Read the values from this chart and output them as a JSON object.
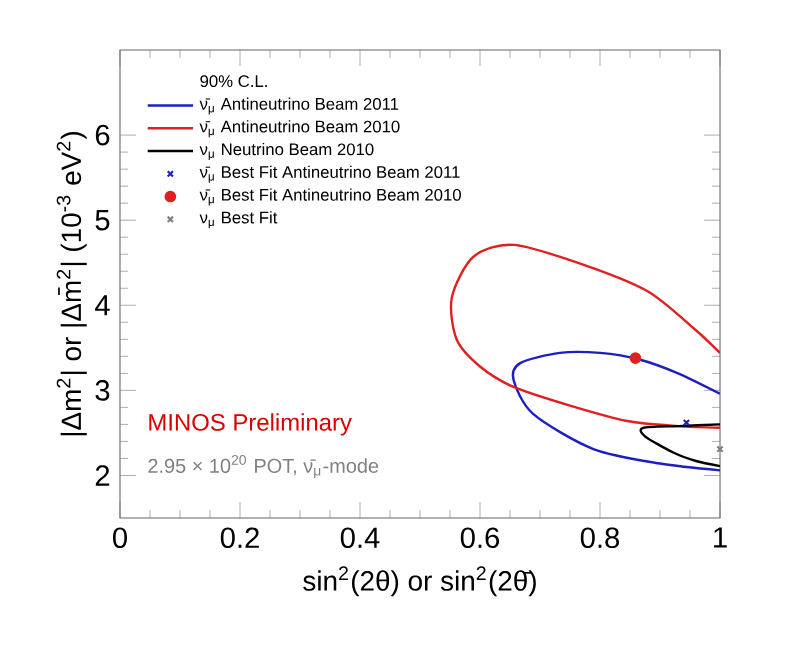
{
  "chart_data": {
    "type": "line",
    "xlabel": "sin$^{2}$(2θ) or sin$^{2}$(2θ̄)",
    "ylabel": "|Δm$^{2}$| or |Δm̄$^{2}$| (10$^{-3}$ eV$^{2}$)",
    "legend_title": "90% C.L.",
    "annotations": [
      "MINOS Preliminary",
      "2.95 × 10$^{20}$ POT, ν̄$_{μ}$-mode"
    ],
    "xlim": [
      0,
      1
    ],
    "ylim": [
      1.5,
      7
    ],
    "xticks": [
      0,
      0.2,
      0.4,
      0.6,
      0.8,
      1
    ],
    "yticks": [
      2,
      3,
      4,
      5,
      6
    ],
    "legend": "top left",
    "series": [
      {
        "name": "ν̄$_{μ}$ Antineutrino Beam 2011",
        "color": "#1f1fbf",
        "x": [
          1,
          0.93,
          0.867,
          0.8,
          0.733,
          0.667,
          0.656,
          0.689,
          0.789,
          0.9,
          1
        ],
        "values": [
          2.96,
          3.2,
          3.36,
          3.44,
          3.44,
          3.32,
          3.12,
          2.72,
          2.31,
          2.14,
          2.06
        ]
      },
      {
        "name": "ν̄$_{μ}$ Antineutrino Beam 2010",
        "color": "#e02020",
        "x": [
          1,
          0.956,
          0.878,
          0.767,
          0.656,
          0.589,
          0.553,
          0.561,
          0.6,
          0.656,
          0.75,
          0.845,
          0.93,
          1
        ],
        "values": [
          3.44,
          3.73,
          4.17,
          4.49,
          4.71,
          4.57,
          4.09,
          3.6,
          3.28,
          3.04,
          2.82,
          2.64,
          2.58,
          2.56
        ]
      },
      {
        "name": "ν$_{μ}$ Neutrino Beam 2010",
        "color": "#000000",
        "x": [
          1,
          0.93,
          0.872,
          0.875,
          0.922,
          0.96,
          1
        ],
        "values": [
          2.6,
          2.58,
          2.56,
          2.46,
          2.27,
          2.17,
          2.11
        ]
      },
      {
        "name": "ν̄$_{μ}$ Best Fit Antineutrino Beam 2011",
        "type": "scatter",
        "marker": "cross",
        "color": "#1f1fbf",
        "x": [
          0.944
        ],
        "values": [
          2.62
        ]
      },
      {
        "name": "ν̄$_{μ}$ Best Fit Antineutrino Beam 2010",
        "type": "scatter",
        "marker": "circle",
        "color": "#e02020",
        "x": [
          0.859
        ],
        "values": [
          3.38
        ]
      },
      {
        "name": "ν$_{μ}$ Best Fit",
        "type": "scatter",
        "marker": "cross",
        "color": "#808080",
        "x": [
          1
        ],
        "values": [
          2.31
        ]
      }
    ]
  }
}
